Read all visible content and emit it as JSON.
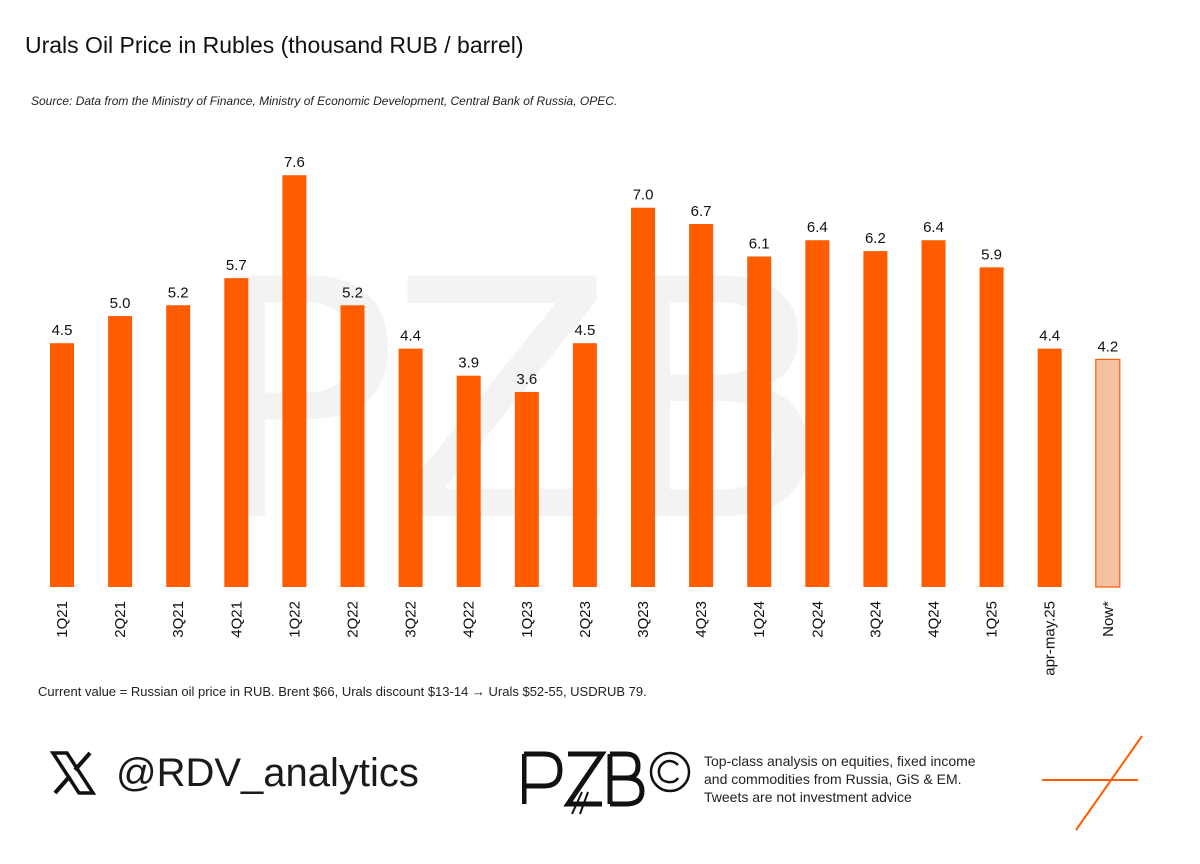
{
  "header": {
    "title": "Urals Oil Price in Rubles (thousand RUB / barrel)",
    "source": "Source: Data from the Ministry of Finance, Ministry of Economic Development, Central Bank of Russia, OPEC."
  },
  "chart_data": {
    "type": "bar",
    "title": "Urals Oil Price in Rubles (thousand RUB / barrel)",
    "xlabel": "",
    "ylabel": "",
    "ylim": [
      0,
      8.25
    ],
    "grid": false,
    "categories": [
      "1Q21",
      "2Q21",
      "3Q21",
      "4Q21",
      "1Q22",
      "2Q22",
      "3Q22",
      "4Q22",
      "1Q23",
      "2Q23",
      "3Q23",
      "4Q23",
      "1Q24",
      "2Q24",
      "3Q24",
      "4Q24",
      "1Q25",
      "apr-may.25",
      "Now*"
    ],
    "values": [
      4.5,
      5.0,
      5.2,
      5.7,
      7.6,
      5.2,
      4.4,
      3.9,
      3.6,
      4.5,
      7.0,
      6.7,
      6.1,
      6.4,
      6.2,
      6.4,
      5.9,
      4.4,
      4.2
    ],
    "value_labels": [
      "4.5",
      "5.0",
      "5.2",
      "5.7",
      "7.6",
      "5.2",
      "4.4",
      "3.9",
      "3.6",
      "4.5",
      "7.0",
      "6.7",
      "6.1",
      "6.4",
      "6.2",
      "6.4",
      "5.9",
      "4.4",
      "4.2"
    ],
    "highlighted_category": "Now*",
    "colors": {
      "bar": "#ff5c00",
      "highlight_fill": "#f5c1a3",
      "highlight_border": "#ff5c00"
    }
  },
  "footnote": "Current value = Russian oil price in RUB. Brent $66, Urals discount $13-14 → Urals $52-55, USDRUB 79.",
  "footer": {
    "handle": "@RDV_analytics",
    "logo_text": "PZB",
    "tagline": [
      "Top-class analysis on equities, fixed income",
      "and commodities from Russia, GiS & EM.",
      "Tweets are not investment advice"
    ]
  },
  "watermark": "PZB"
}
